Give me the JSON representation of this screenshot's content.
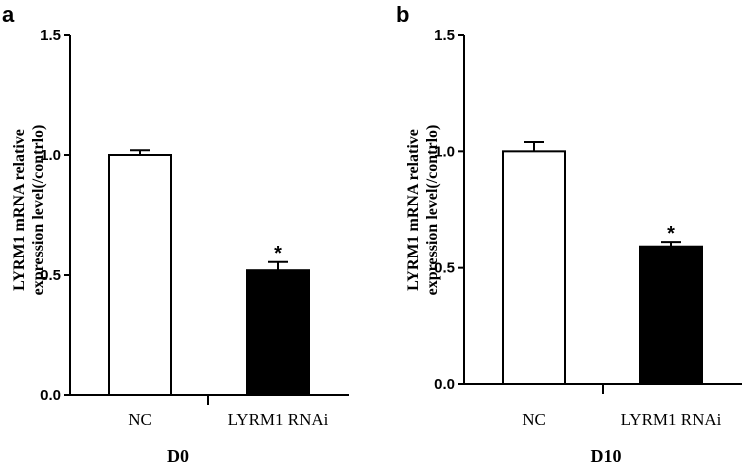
{
  "chart_data": [
    {
      "type": "bar",
      "panel_label": "a",
      "group_label": "D0",
      "ylabel_lines": [
        "LYRM1 mRNA relative",
        "expression level(/contrlo)"
      ],
      "ylim": [
        0,
        1.5
      ],
      "yticks": [
        "0.0",
        "0.5",
        "1.0",
        "1.5"
      ],
      "categories": [
        "NC",
        "LYRM1 RNAi"
      ],
      "values": [
        1.0,
        0.52
      ],
      "errors": [
        0.02,
        0.035
      ],
      "bar_fills": [
        "#ffffff",
        "#000000"
      ],
      "annotations": [
        "",
        "*"
      ]
    },
    {
      "type": "bar",
      "panel_label": "b",
      "group_label": "D10",
      "ylabel_lines": [
        "LYRM1 mRNA relative",
        "expression level(/contrlo)"
      ],
      "ylim": [
        0,
        1.5
      ],
      "yticks": [
        "0.0",
        "0.5",
        "1.0",
        "1.5"
      ],
      "categories": [
        "NC",
        "LYRM1 RNAi"
      ],
      "values": [
        1.0,
        0.59
      ],
      "errors": [
        0.04,
        0.02
      ],
      "bar_fills": [
        "#ffffff",
        "#000000"
      ],
      "annotations": [
        "",
        "*"
      ]
    }
  ]
}
